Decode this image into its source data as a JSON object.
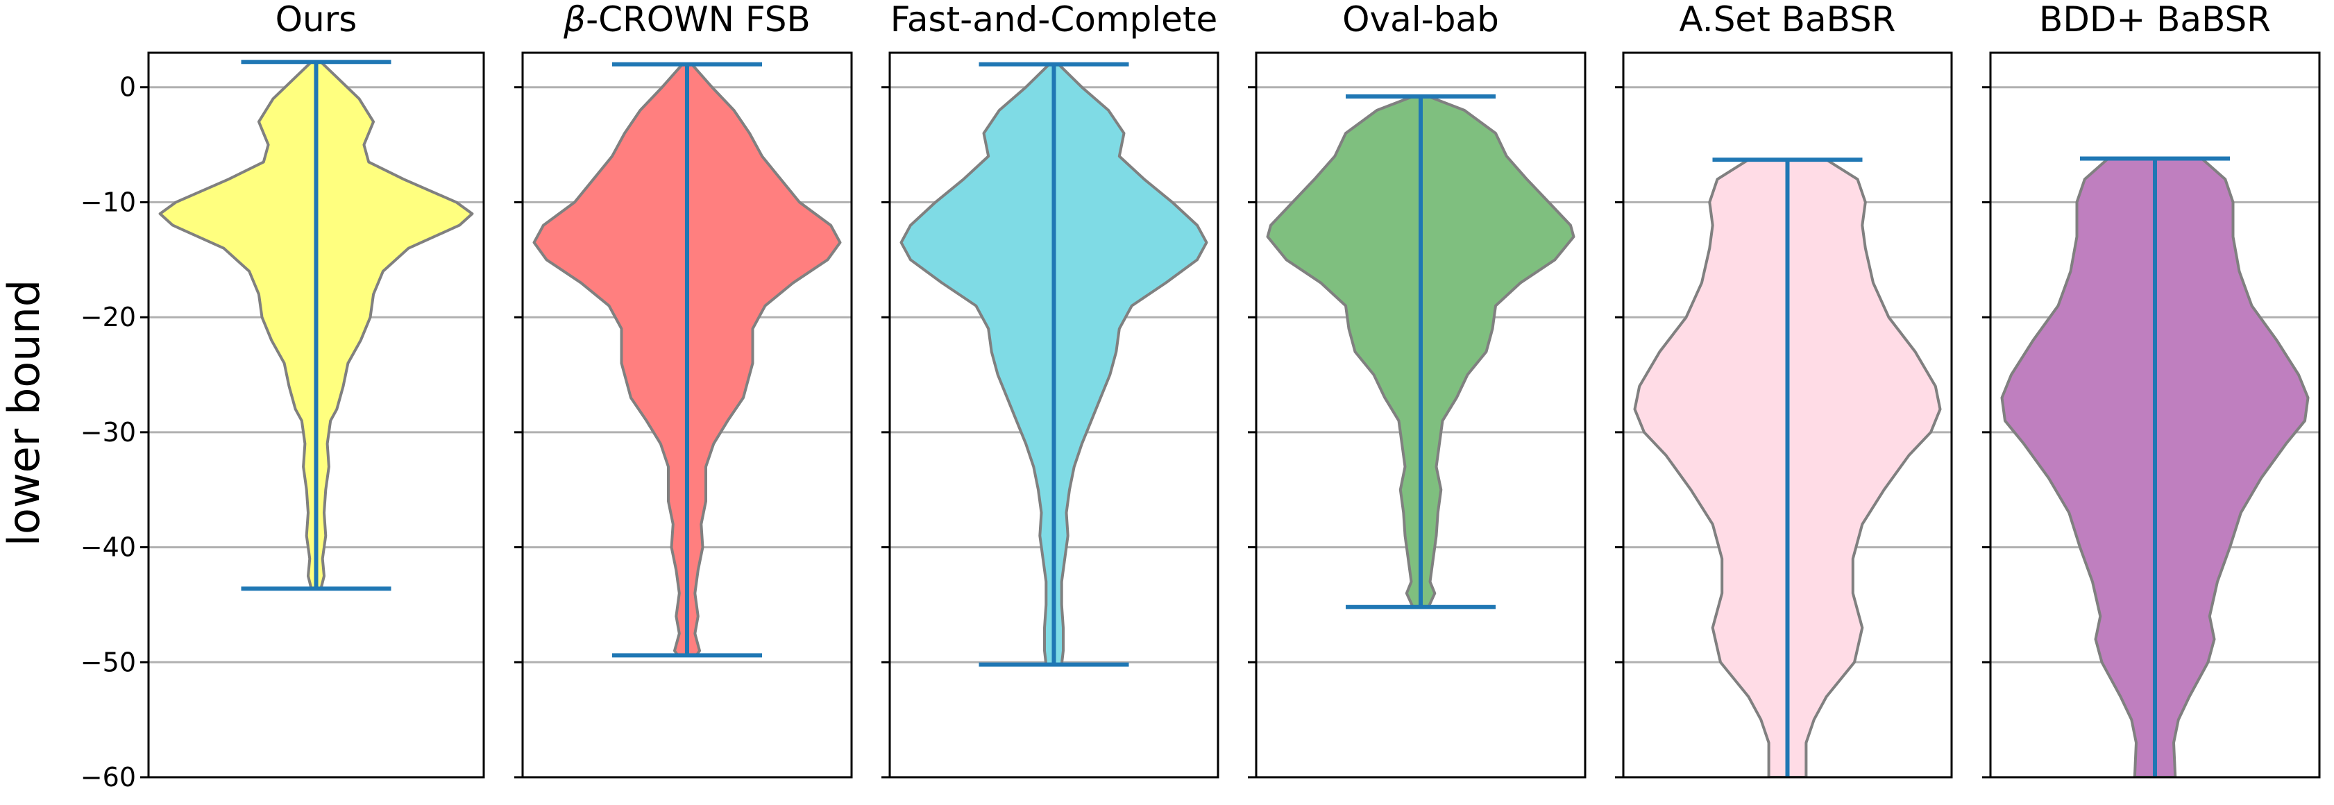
{
  "chart_data": {
    "type": "violin",
    "ylabel": "lower bound",
    "ylim": [
      -60,
      3
    ],
    "yticks": [
      0,
      -10,
      -20,
      -30,
      -40,
      -50,
      -60
    ],
    "ytick_labels": [
      "0",
      "−10",
      "−20",
      "−30",
      "−40",
      "−50",
      "−60"
    ],
    "grid": "horizontal",
    "median_line_color": "#1f77b4",
    "outline_color": "#808080",
    "panels": [
      {
        "title": "Ours",
        "title_italic_prefix": "",
        "fill": "#ffff7f",
        "max": 2.2,
        "min": -43.6,
        "profile": [
          [
            2.2,
            0.03
          ],
          [
            1,
            0.12
          ],
          [
            -1,
            0.27
          ],
          [
            -3,
            0.36
          ],
          [
            -5,
            0.3
          ],
          [
            -6.5,
            0.33
          ],
          [
            -8,
            0.55
          ],
          [
            -10,
            0.88
          ],
          [
            -11,
            0.98
          ],
          [
            -12,
            0.9
          ],
          [
            -14,
            0.58
          ],
          [
            -16,
            0.42
          ],
          [
            -18,
            0.36
          ],
          [
            -20,
            0.34
          ],
          [
            -22,
            0.28
          ],
          [
            -24,
            0.2
          ],
          [
            -26,
            0.17
          ],
          [
            -28,
            0.13
          ],
          [
            -29,
            0.09
          ],
          [
            -31,
            0.07
          ],
          [
            -33,
            0.08
          ],
          [
            -35,
            0.06
          ],
          [
            -37,
            0.05
          ],
          [
            -39,
            0.06
          ],
          [
            -41,
            0.04
          ],
          [
            -42.5,
            0.05
          ],
          [
            -43.6,
            0.03
          ]
        ]
      },
      {
        "title": "-CROWN FSB",
        "title_italic_prefix": "β",
        "fill": "#ff7f7f",
        "max": 2.0,
        "min": -49.4,
        "profile": [
          [
            2,
            0.03
          ],
          [
            0,
            0.16
          ],
          [
            -2,
            0.3
          ],
          [
            -4,
            0.4
          ],
          [
            -6,
            0.48
          ],
          [
            -8,
            0.6
          ],
          [
            -10,
            0.72
          ],
          [
            -12,
            0.92
          ],
          [
            -13.5,
            0.98
          ],
          [
            -15,
            0.9
          ],
          [
            -17,
            0.68
          ],
          [
            -19,
            0.5
          ],
          [
            -21,
            0.42
          ],
          [
            -24,
            0.42
          ],
          [
            -27,
            0.36
          ],
          [
            -29,
            0.26
          ],
          [
            -31,
            0.17
          ],
          [
            -33,
            0.12
          ],
          [
            -36,
            0.12
          ],
          [
            -38,
            0.09
          ],
          [
            -40,
            0.1
          ],
          [
            -42,
            0.07
          ],
          [
            -44,
            0.05
          ],
          [
            -46,
            0.07
          ],
          [
            -47.5,
            0.05
          ],
          [
            -49,
            0.08
          ],
          [
            -49.4,
            0.06
          ]
        ]
      },
      {
        "title": "Fast-and-Complete",
        "title_italic_prefix": "",
        "fill": "#7fdbe5",
        "max": 2.0,
        "min": -50.2,
        "profile": [
          [
            2,
            0.03
          ],
          [
            0,
            0.18
          ],
          [
            -2,
            0.35
          ],
          [
            -4,
            0.45
          ],
          [
            -6,
            0.42
          ],
          [
            -8,
            0.58
          ],
          [
            -10,
            0.76
          ],
          [
            -12,
            0.92
          ],
          [
            -13.5,
            0.98
          ],
          [
            -15,
            0.92
          ],
          [
            -17,
            0.72
          ],
          [
            -19,
            0.5
          ],
          [
            -21,
            0.42
          ],
          [
            -23,
            0.4
          ],
          [
            -25,
            0.36
          ],
          [
            -27,
            0.3
          ],
          [
            -29,
            0.24
          ],
          [
            -31,
            0.18
          ],
          [
            -33,
            0.13
          ],
          [
            -35,
            0.1
          ],
          [
            -37,
            0.08
          ],
          [
            -39,
            0.09
          ],
          [
            -41,
            0.07
          ],
          [
            -43,
            0.05
          ],
          [
            -45,
            0.05
          ],
          [
            -47,
            0.06
          ],
          [
            -49,
            0.06
          ],
          [
            -50.2,
            0.05
          ]
        ]
      },
      {
        "title": "Oval-bab",
        "title_italic_prefix": "",
        "fill": "#7fbf7f",
        "max": -0.8,
        "min": -45.2,
        "profile": [
          [
            -0.8,
            0.05
          ],
          [
            -2,
            0.28
          ],
          [
            -4,
            0.48
          ],
          [
            -6,
            0.55
          ],
          [
            -8,
            0.68
          ],
          [
            -10,
            0.82
          ],
          [
            -12,
            0.96
          ],
          [
            -13,
            0.98
          ],
          [
            -15,
            0.86
          ],
          [
            -17,
            0.64
          ],
          [
            -19,
            0.48
          ],
          [
            -21,
            0.46
          ],
          [
            -23,
            0.42
          ],
          [
            -25,
            0.3
          ],
          [
            -27,
            0.23
          ],
          [
            -29,
            0.14
          ],
          [
            -31,
            0.12
          ],
          [
            -33,
            0.1
          ],
          [
            -35,
            0.13
          ],
          [
            -37,
            0.11
          ],
          [
            -39,
            0.1
          ],
          [
            -41,
            0.08
          ],
          [
            -43,
            0.06
          ],
          [
            -44,
            0.09
          ],
          [
            -45.2,
            0.05
          ]
        ]
      },
      {
        "title": "A.Set BaBSR",
        "title_italic_prefix": "",
        "fill": "#ffdce6",
        "max": -6.3,
        "min": -60,
        "profile": [
          [
            -6.3,
            0.25
          ],
          [
            -8,
            0.45
          ],
          [
            -10,
            0.5
          ],
          [
            -12,
            0.48
          ],
          [
            -14,
            0.5
          ],
          [
            -17,
            0.55
          ],
          [
            -20,
            0.65
          ],
          [
            -23,
            0.82
          ],
          [
            -26,
            0.95
          ],
          [
            -28,
            0.98
          ],
          [
            -30,
            0.92
          ],
          [
            -32,
            0.78
          ],
          [
            -35,
            0.62
          ],
          [
            -38,
            0.48
          ],
          [
            -41,
            0.42
          ],
          [
            -44,
            0.42
          ],
          [
            -47,
            0.48
          ],
          [
            -50,
            0.43
          ],
          [
            -53,
            0.25
          ],
          [
            -55,
            0.17
          ],
          [
            -57,
            0.12
          ],
          [
            -60,
            0.12
          ]
        ]
      },
      {
        "title": "BDD+ BaBSR",
        "title_italic_prefix": "",
        "fill": "#bf7fbf",
        "max": -6.2,
        "min": -60,
        "profile": [
          [
            -6.2,
            0.3
          ],
          [
            -8,
            0.45
          ],
          [
            -10,
            0.5
          ],
          [
            -13,
            0.5
          ],
          [
            -16,
            0.54
          ],
          [
            -19,
            0.62
          ],
          [
            -22,
            0.78
          ],
          [
            -25,
            0.92
          ],
          [
            -27,
            0.98
          ],
          [
            -29,
            0.96
          ],
          [
            -31,
            0.84
          ],
          [
            -34,
            0.68
          ],
          [
            -37,
            0.55
          ],
          [
            -40,
            0.48
          ],
          [
            -43,
            0.4
          ],
          [
            -46,
            0.35
          ],
          [
            -48,
            0.38
          ],
          [
            -50,
            0.34
          ],
          [
            -53,
            0.22
          ],
          [
            -55,
            0.15
          ],
          [
            -57,
            0.12
          ],
          [
            -60,
            0.13
          ]
        ]
      }
    ]
  }
}
